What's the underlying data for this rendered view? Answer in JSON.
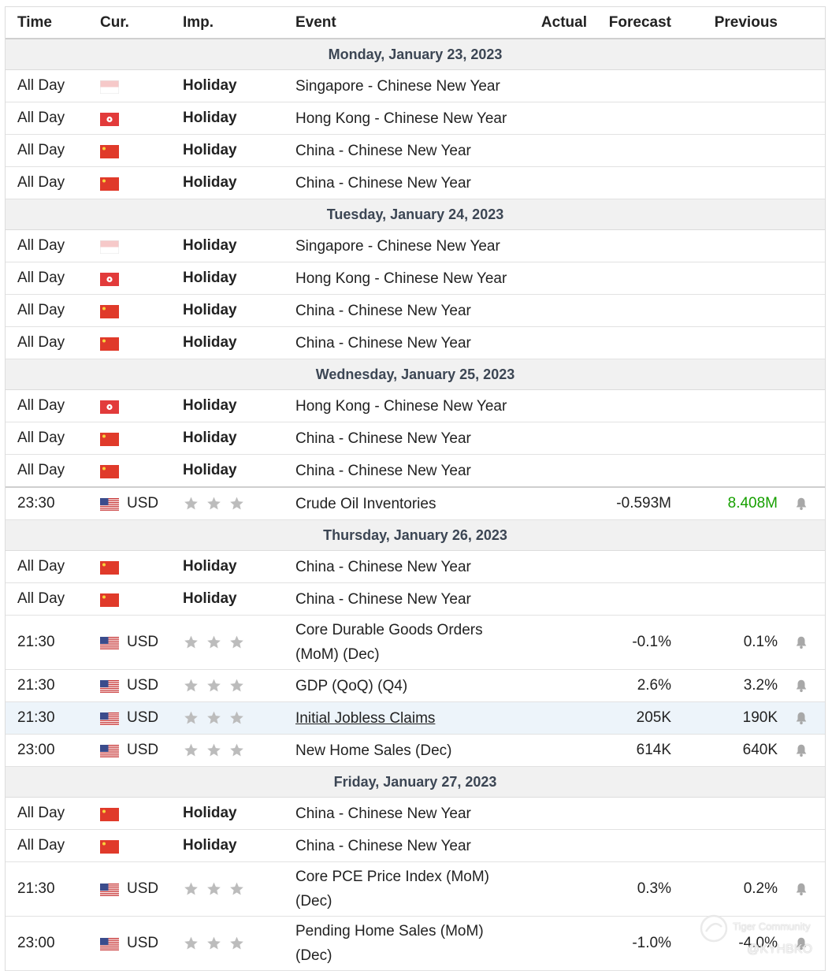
{
  "columns": {
    "time": "Time",
    "cur": "Cur.",
    "imp": "Imp.",
    "event": "Event",
    "actual": "Actual",
    "forecast": "Forecast",
    "previous": "Previous"
  },
  "colors": {
    "prev_up": "#17a000",
    "day_bg": "#f1f1f1",
    "highlight_bg": "#edf4fa"
  },
  "rows": [
    {
      "type": "day",
      "label": "Monday, January 23, 2023"
    },
    {
      "type": "event",
      "time": "All Day",
      "flag": "sg-flag",
      "cur": "",
      "imp": "Holiday",
      "event": "Singapore - Chinese New Year",
      "actual": "",
      "forecast": "",
      "previous": ""
    },
    {
      "type": "event",
      "time": "All Day",
      "flag": "hk-flag",
      "cur": "",
      "imp": "Holiday",
      "event": "Hong Kong - Chinese New Year",
      "actual": "",
      "forecast": "",
      "previous": ""
    },
    {
      "type": "event",
      "time": "All Day",
      "flag": "cn-flag",
      "cur": "",
      "imp": "Holiday",
      "event": "China - Chinese New Year",
      "actual": "",
      "forecast": "",
      "previous": ""
    },
    {
      "type": "event",
      "time": "All Day",
      "flag": "cn-flag",
      "cur": "",
      "imp": "Holiday",
      "event": "China - Chinese New Year",
      "actual": "",
      "forecast": "",
      "previous": ""
    },
    {
      "type": "day",
      "label": "Tuesday, January 24, 2023"
    },
    {
      "type": "event",
      "time": "All Day",
      "flag": "sg-flag",
      "cur": "",
      "imp": "Holiday",
      "event": "Singapore - Chinese New Year",
      "actual": "",
      "forecast": "",
      "previous": ""
    },
    {
      "type": "event",
      "time": "All Day",
      "flag": "hk-flag",
      "cur": "",
      "imp": "Holiday",
      "event": "Hong Kong - Chinese New Year",
      "actual": "",
      "forecast": "",
      "previous": ""
    },
    {
      "type": "event",
      "time": "All Day",
      "flag": "cn-flag",
      "cur": "",
      "imp": "Holiday",
      "event": "China - Chinese New Year",
      "actual": "",
      "forecast": "",
      "previous": ""
    },
    {
      "type": "event",
      "time": "All Day",
      "flag": "cn-flag",
      "cur": "",
      "imp": "Holiday",
      "event": "China - Chinese New Year",
      "actual": "",
      "forecast": "",
      "previous": ""
    },
    {
      "type": "day",
      "label": "Wednesday, January 25, 2023"
    },
    {
      "type": "event",
      "time": "All Day",
      "flag": "hk-flag",
      "cur": "",
      "imp": "Holiday",
      "event": "Hong Kong - Chinese New Year",
      "actual": "",
      "forecast": "",
      "previous": ""
    },
    {
      "type": "event",
      "time": "All Day",
      "flag": "cn-flag",
      "cur": "",
      "imp": "Holiday",
      "event": "China - Chinese New Year",
      "actual": "",
      "forecast": "",
      "previous": ""
    },
    {
      "type": "event",
      "time": "All Day",
      "flag": "cn-flag",
      "cur": "",
      "imp": "Holiday",
      "event": "China - Chinese New Year",
      "actual": "",
      "forecast": "",
      "previous": ""
    },
    {
      "type": "event",
      "sep": true,
      "time": "23:30",
      "flag": "us-flag",
      "cur": "USD",
      "imp": "stars",
      "event": "Crude Oil Inventories",
      "actual": "",
      "forecast": "-0.593M",
      "previous": "8.408M",
      "prev_up": true,
      "bell": true
    },
    {
      "type": "day",
      "label": "Thursday, January 26, 2023"
    },
    {
      "type": "event",
      "time": "All Day",
      "flag": "cn-flag",
      "cur": "",
      "imp": "Holiday",
      "event": "China - Chinese New Year",
      "actual": "",
      "forecast": "",
      "previous": ""
    },
    {
      "type": "event",
      "time": "All Day",
      "flag": "cn-flag",
      "cur": "",
      "imp": "Holiday",
      "event": "China - Chinese New Year",
      "actual": "",
      "forecast": "",
      "previous": ""
    },
    {
      "type": "event",
      "tall": true,
      "time": "21:30",
      "flag": "us-flag",
      "cur": "USD",
      "imp": "stars",
      "event": "Core Durable Goods Orders (MoM) (Dec)",
      "actual": "",
      "forecast": "-0.1%",
      "previous": "0.1%",
      "bell": true
    },
    {
      "type": "event",
      "time": "21:30",
      "flag": "us-flag",
      "cur": "USD",
      "imp": "stars",
      "event": "GDP (QoQ) (Q4)",
      "actual": "",
      "forecast": "2.6%",
      "previous": "3.2%",
      "bell": true
    },
    {
      "type": "event",
      "highlight": true,
      "link": true,
      "time": "21:30",
      "flag": "us-flag",
      "cur": "USD",
      "imp": "stars",
      "event": "Initial Jobless Claims",
      "actual": "",
      "forecast": "205K",
      "previous": "190K",
      "bell": true
    },
    {
      "type": "event",
      "time": "23:00",
      "flag": "us-flag",
      "cur": "USD",
      "imp": "stars",
      "event": "New Home Sales (Dec)",
      "actual": "",
      "forecast": "614K",
      "previous": "640K",
      "bell": true
    },
    {
      "type": "day",
      "label": "Friday, January 27, 2023"
    },
    {
      "type": "event",
      "time": "All Day",
      "flag": "cn-flag",
      "cur": "",
      "imp": "Holiday",
      "event": "China - Chinese New Year",
      "actual": "",
      "forecast": "",
      "previous": ""
    },
    {
      "type": "event",
      "time": "All Day",
      "flag": "cn-flag",
      "cur": "",
      "imp": "Holiday",
      "event": "China - Chinese New Year",
      "actual": "",
      "forecast": "",
      "previous": ""
    },
    {
      "type": "event",
      "tall": true,
      "time": "21:30",
      "flag": "us-flag",
      "cur": "USD",
      "imp": "stars",
      "event": "Core PCE Price Index (MoM) (Dec)",
      "actual": "",
      "forecast": "0.3%",
      "previous": "0.2%",
      "bell": true
    },
    {
      "type": "event",
      "tall": true,
      "time": "23:00",
      "flag": "us-flag",
      "cur": "USD",
      "imp": "stars",
      "event": "Pending Home Sales (MoM) (Dec)",
      "actual": "",
      "forecast": "-1.0%",
      "previous": "-4.0%",
      "bell": true
    }
  ],
  "watermark": {
    "brand": "Tiger Community",
    "user": "@KYHBKO"
  }
}
